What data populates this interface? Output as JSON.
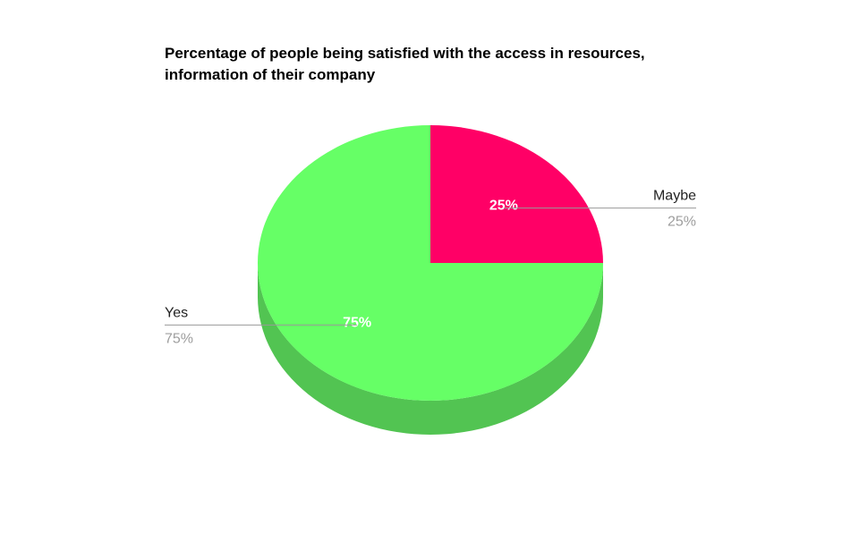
{
  "chart_data": {
    "type": "pie",
    "title": "Percentage of people being satisfied with the access in resources,\ninformation of their company",
    "slices": [
      {
        "label": "Maybe",
        "value": 25,
        "percent_label": "25%",
        "color": "#ff0066",
        "side_color": "#cc0052"
      },
      {
        "label": "Yes",
        "value": 75,
        "percent_label": "75%",
        "color": "#66ff66",
        "side_color": "#52c452"
      }
    ],
    "three_d": true,
    "legend": "labeled callouts"
  }
}
